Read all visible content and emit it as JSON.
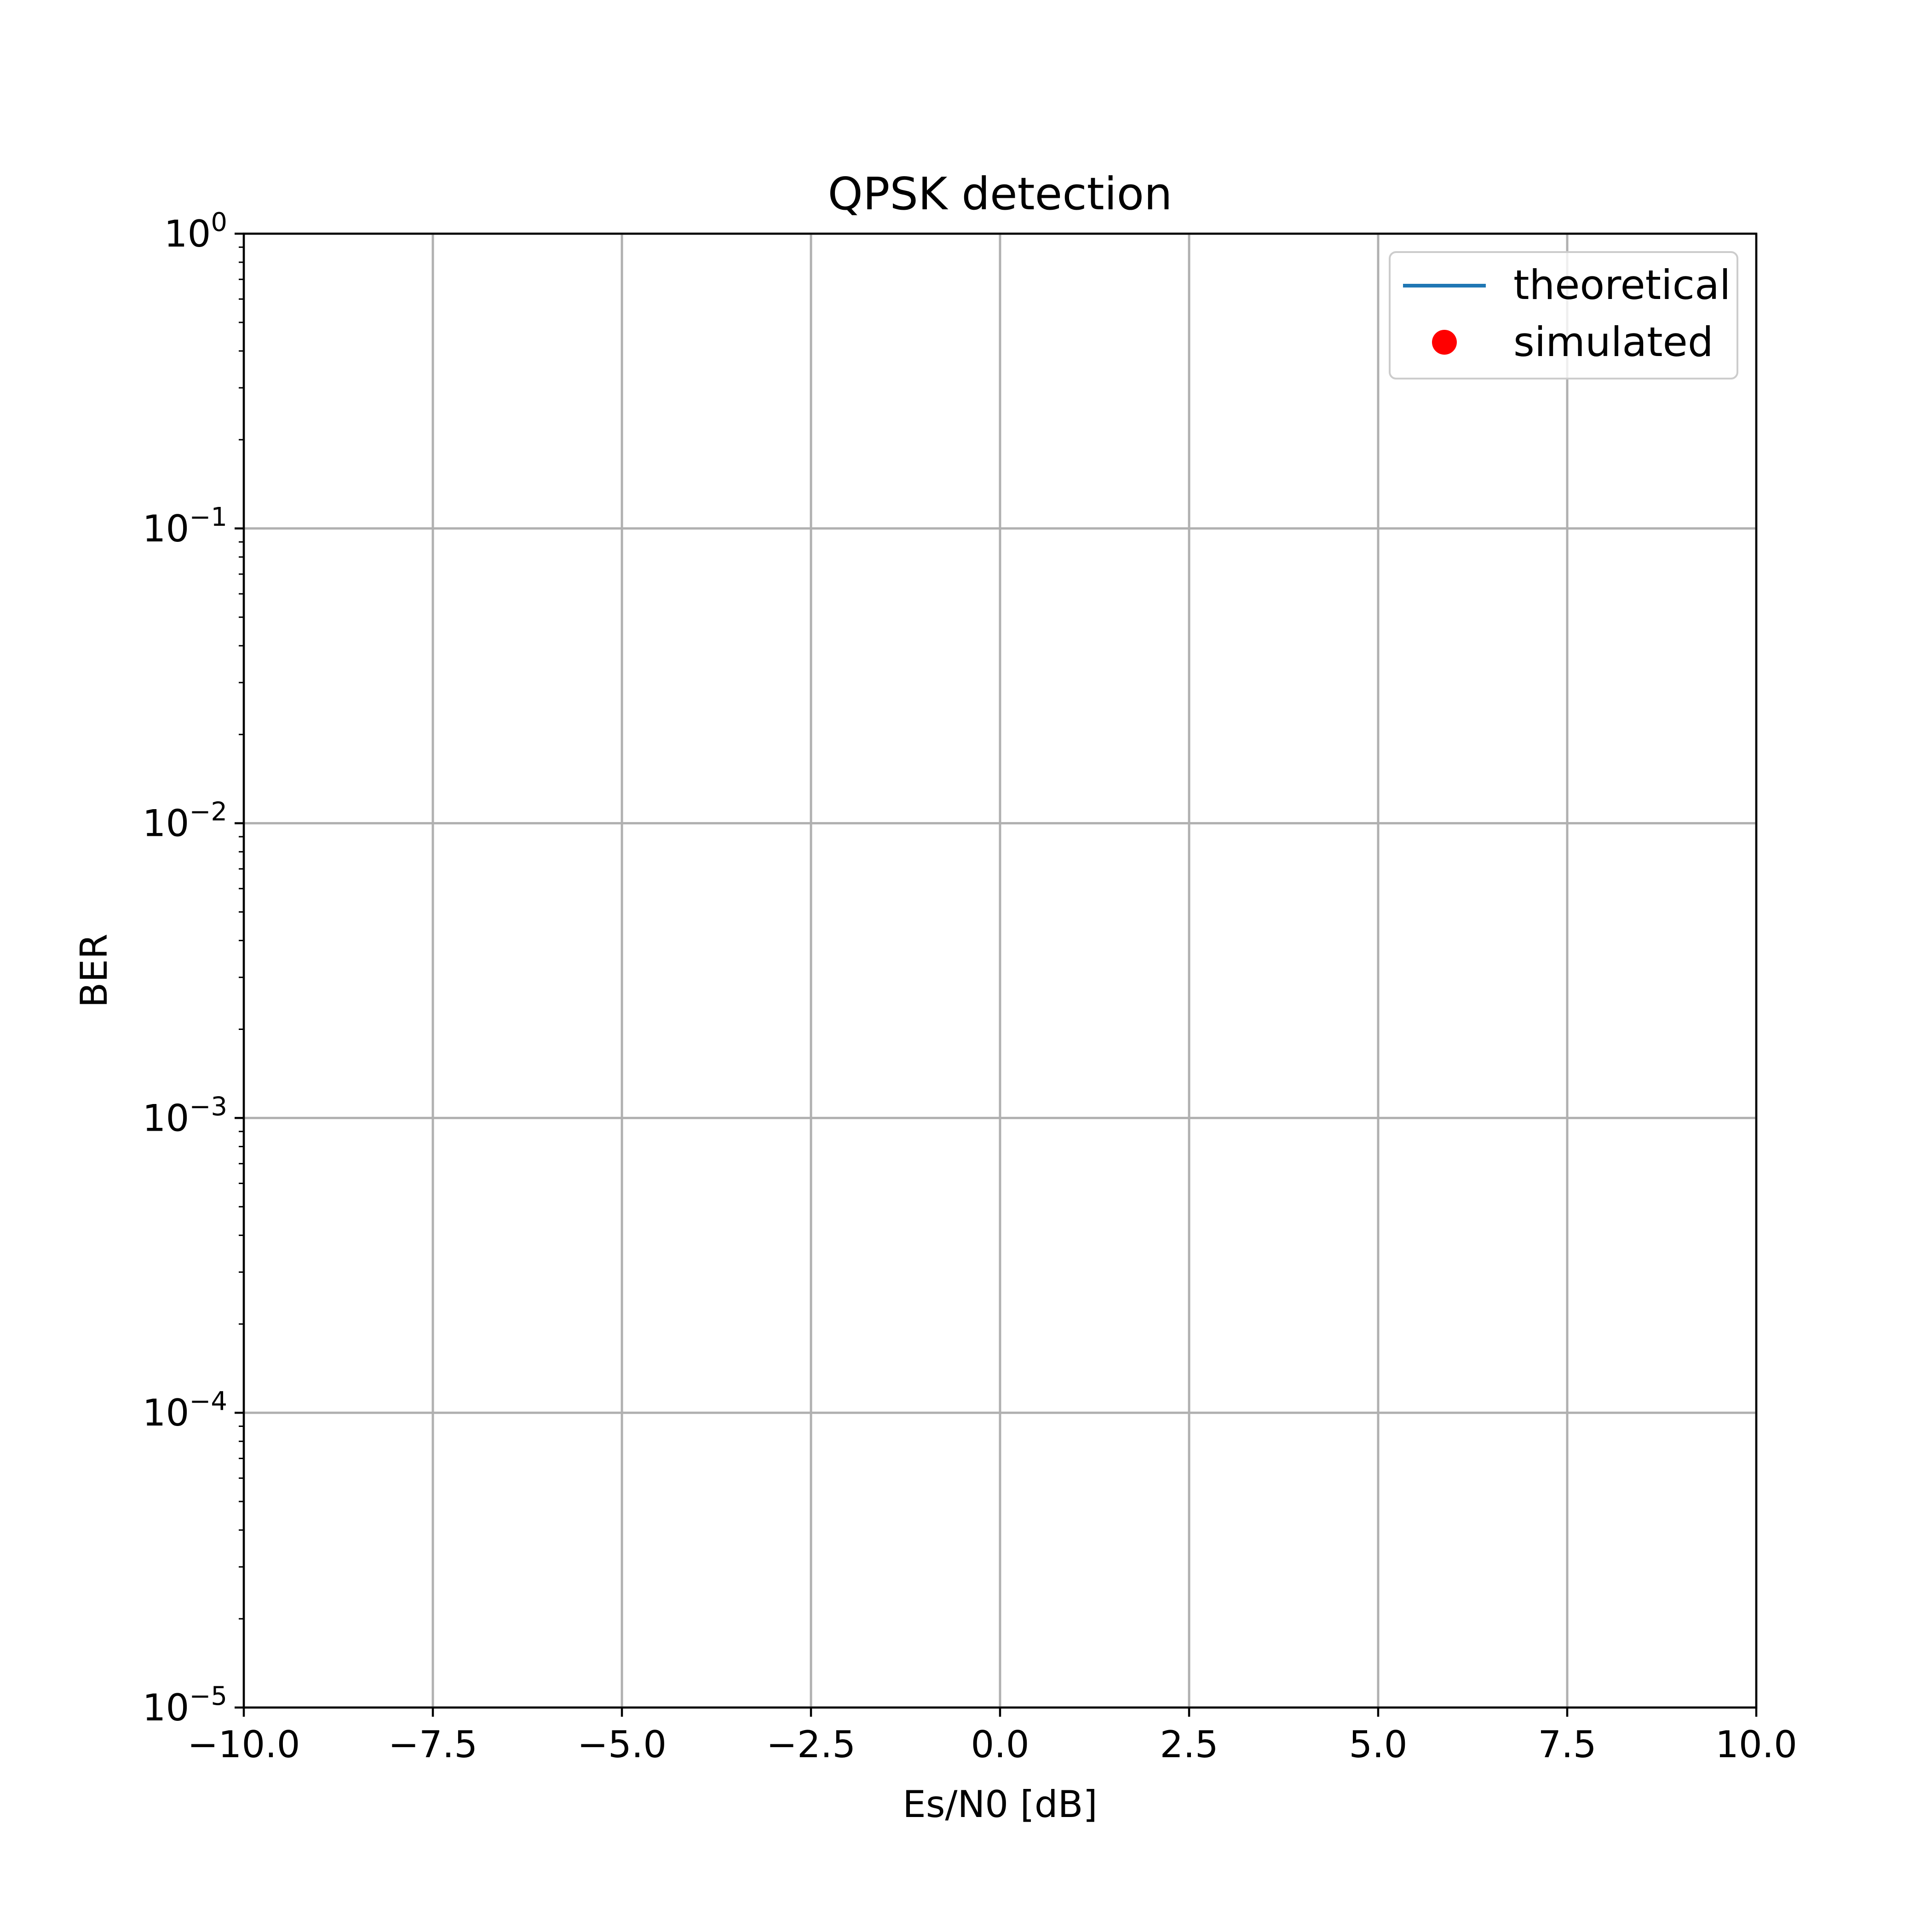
{
  "chart_data": {
    "type": "line",
    "title": "QPSK detection",
    "xlabel": "Es/N0 [dB]",
    "ylabel": "BER",
    "xlim": [
      -10.0,
      10.0
    ],
    "ylim": [
      1e-05,
      1
    ],
    "yscale": "log",
    "grid": true,
    "legend_position": "top-right",
    "x_ticks": [
      "−10.0",
      "−7.5",
      "−5.0",
      "−2.5",
      "0.0",
      "2.5",
      "5.0",
      "7.5",
      "10.0"
    ],
    "y_ticks": [
      {
        "base": "10",
        "exp": "0"
      },
      {
        "base": "10",
        "exp": "−1"
      },
      {
        "base": "10",
        "exp": "−2"
      },
      {
        "base": "10",
        "exp": "−3"
      },
      {
        "base": "10",
        "exp": "−4"
      },
      {
        "base": "10",
        "exp": "−5"
      }
    ],
    "series": [
      {
        "name": "theoretical",
        "style": "line",
        "color": "#1f77b4",
        "x": [],
        "y": []
      },
      {
        "name": "simulated",
        "style": "marker",
        "color": "#ff0000",
        "x": [],
        "y": []
      }
    ]
  }
}
